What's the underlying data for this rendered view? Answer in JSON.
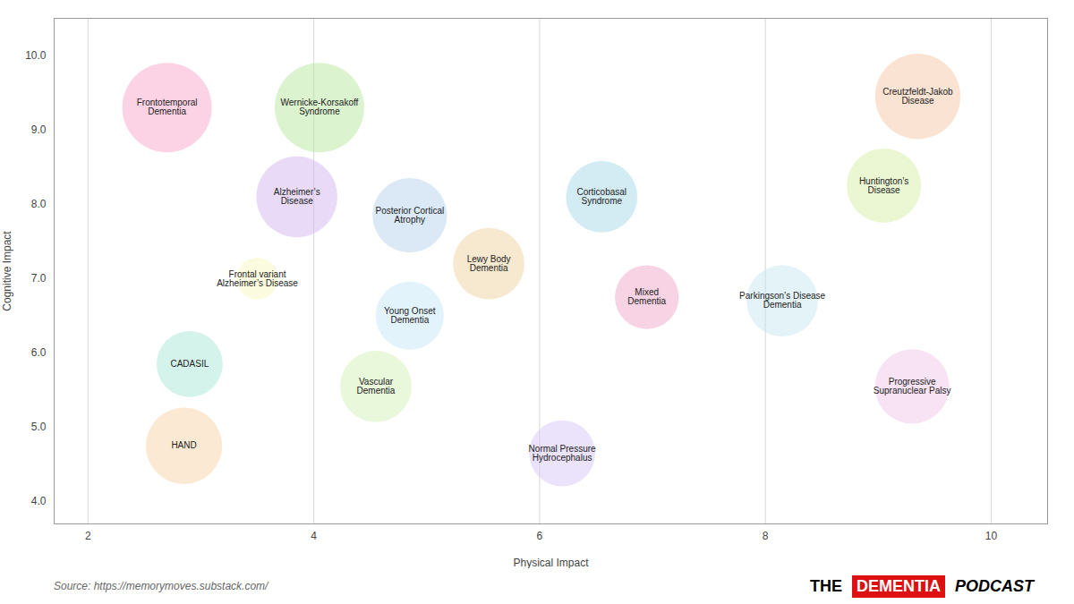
{
  "chart_data": {
    "type": "scatter",
    "xlabel": "Physical Impact",
    "ylabel": "Cognitive Impact",
    "caption": "Source: https://memorymoves.substack.com/",
    "annotations": [
      {
        "text": "THE"
      },
      {
        "text": "DEMENTIA",
        "color": "#dd1111"
      },
      {
        "text": "PODCAST"
      }
    ],
    "names": [
      "Frontotemporal\nDementia",
      "Wernicke-Korsakoff\nSyndrome",
      "Alzheimer’s\nDisease",
      "Posterior Cortical\nAtrophy",
      "Frontal variant\nAlzheimer’s Disease",
      "Lewy Body\nDementia",
      "Young Onset\nDementia",
      "Vascular\nDementia",
      "CADASIL",
      "HAND",
      "Normal Pressure\nHydrocephalus",
      "Corticobasal\nSyndrome",
      "Mixed\nDementia",
      "Parkingson’s Disease\nDementia",
      "Creutzfeldt-Jakob\nDisease",
      "Huntington’s\nDisease",
      "Progressive\nSupranuclear Palsy"
    ],
    "x": [
      2.7,
      4.05,
      3.85,
      4.85,
      3.5,
      5.55,
      4.85,
      4.55,
      2.9,
      2.85,
      6.2,
      6.55,
      6.95,
      8.15,
      9.35,
      9.05,
      9.3
    ],
    "y": [
      9.3,
      9.3,
      8.1,
      7.85,
      7.0,
      7.2,
      6.5,
      5.55,
      5.85,
      4.75,
      4.65,
      8.1,
      6.75,
      6.7,
      9.45,
      8.25,
      5.55
    ],
    "size": [
      5500,
      5500,
      4500,
      3800,
      1200,
      3500,
      3200,
      3500,
      3000,
      4000,
      3000,
      3500,
      2800,
      3500,
      5000,
      3800,
      3800
    ],
    "colors": [
      "#f9a8c9",
      "#b8e8a0",
      "#d4b8f0",
      "#b8d4f0",
      "#f8f8c0",
      "#f0d4a0",
      "#c8e8f8",
      "#d4f0b8",
      "#a8e8d8",
      "#f8d4a8",
      "#d8c8f8",
      "#a8d8e8",
      "#f0a8c8",
      "#c8e8f0",
      "#f8c8a8",
      "#d8f0a8",
      "#f0c8e8"
    ],
    "xlim": [
      1.7,
      10.5
    ],
    "ylim": [
      3.7,
      10.5
    ],
    "xticks": [
      2,
      4,
      6,
      8,
      10
    ],
    "yticks": [
      4,
      5,
      6,
      7,
      8,
      9,
      10
    ],
    "grid": "x"
  }
}
